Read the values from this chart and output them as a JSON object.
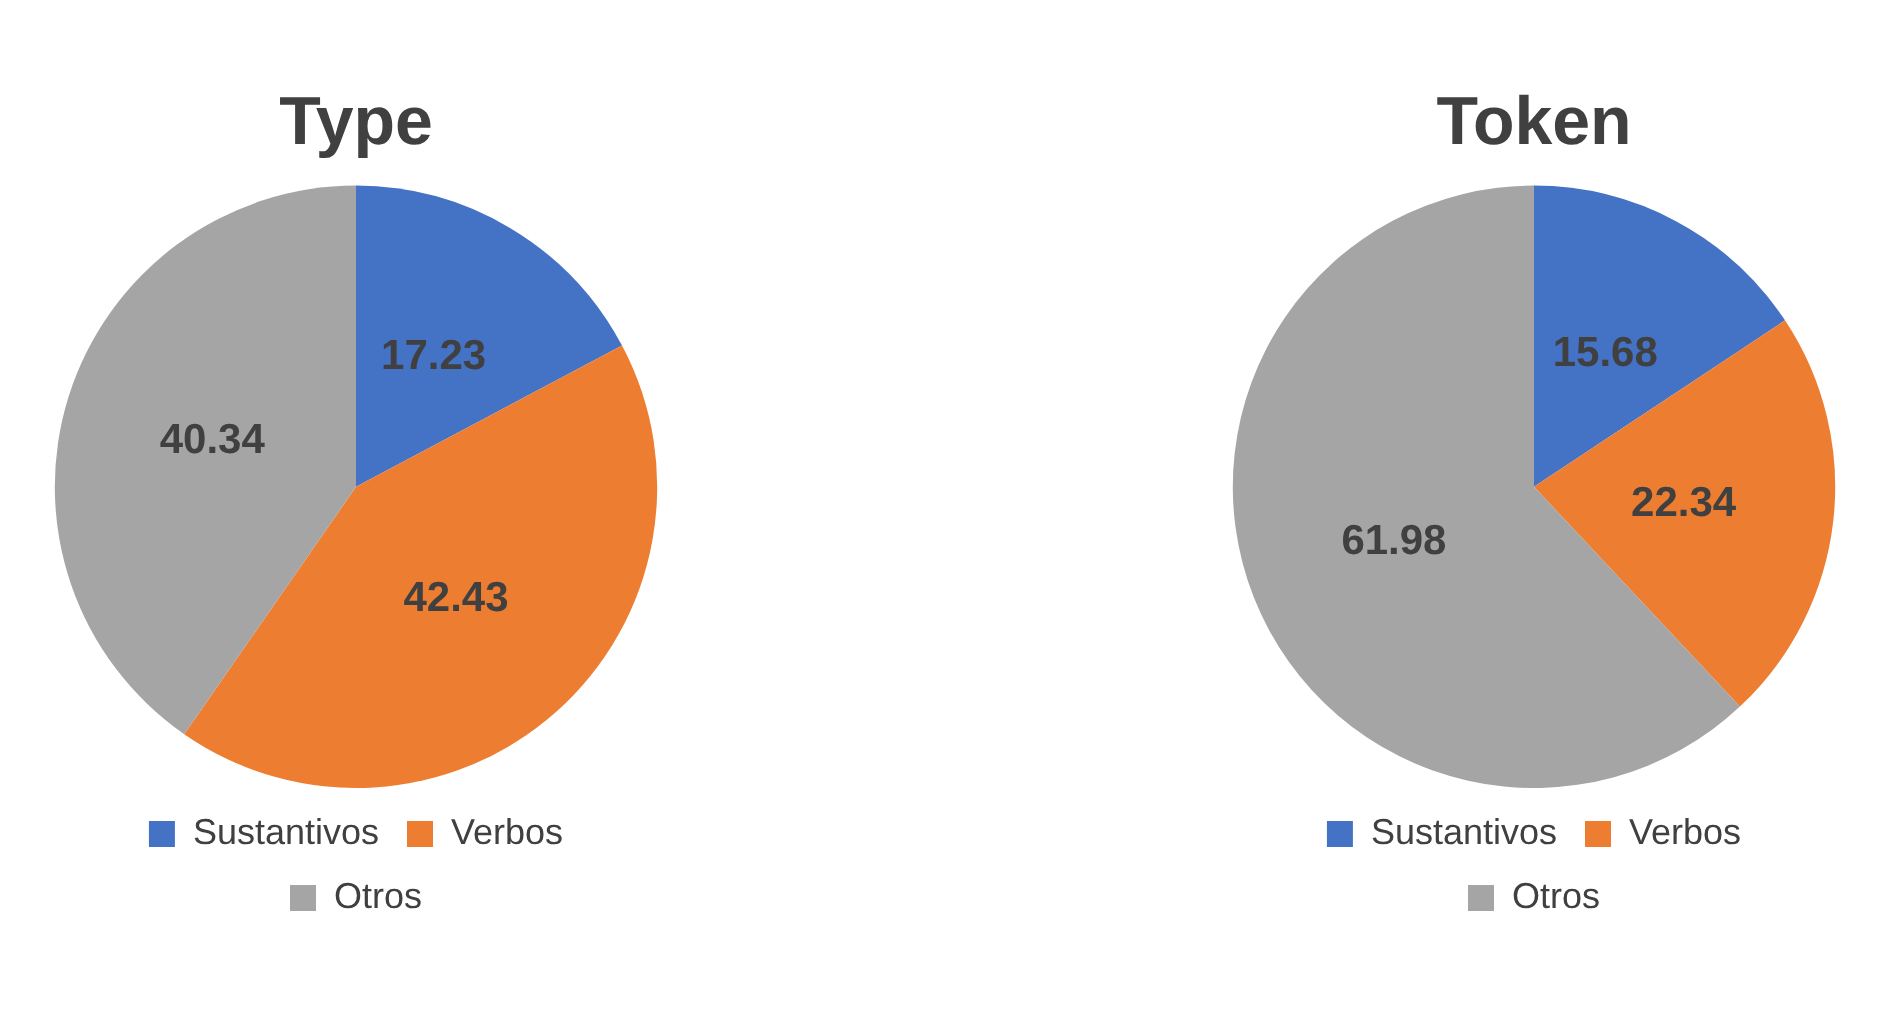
{
  "chart_data": [
    {
      "type": "pie",
      "title": "Type",
      "categories": [
        "Sustantivos",
        "Verbos",
        "Otros"
      ],
      "values": [
        17.23,
        42.43,
        40.34
      ],
      "colors": [
        "#4472c4",
        "#ed7d31",
        "#a5a5a5"
      ],
      "data_labels": true,
      "legend": "bottom"
    },
    {
      "type": "pie",
      "title": "Token",
      "categories": [
        "Sustantivos",
        "Verbos",
        "Otros"
      ],
      "values": [
        15.68,
        22.34,
        61.98
      ],
      "colors": [
        "#4472c4",
        "#ed7d31",
        "#a5a5a5"
      ],
      "data_labels": true,
      "legend": "bottom"
    }
  ]
}
